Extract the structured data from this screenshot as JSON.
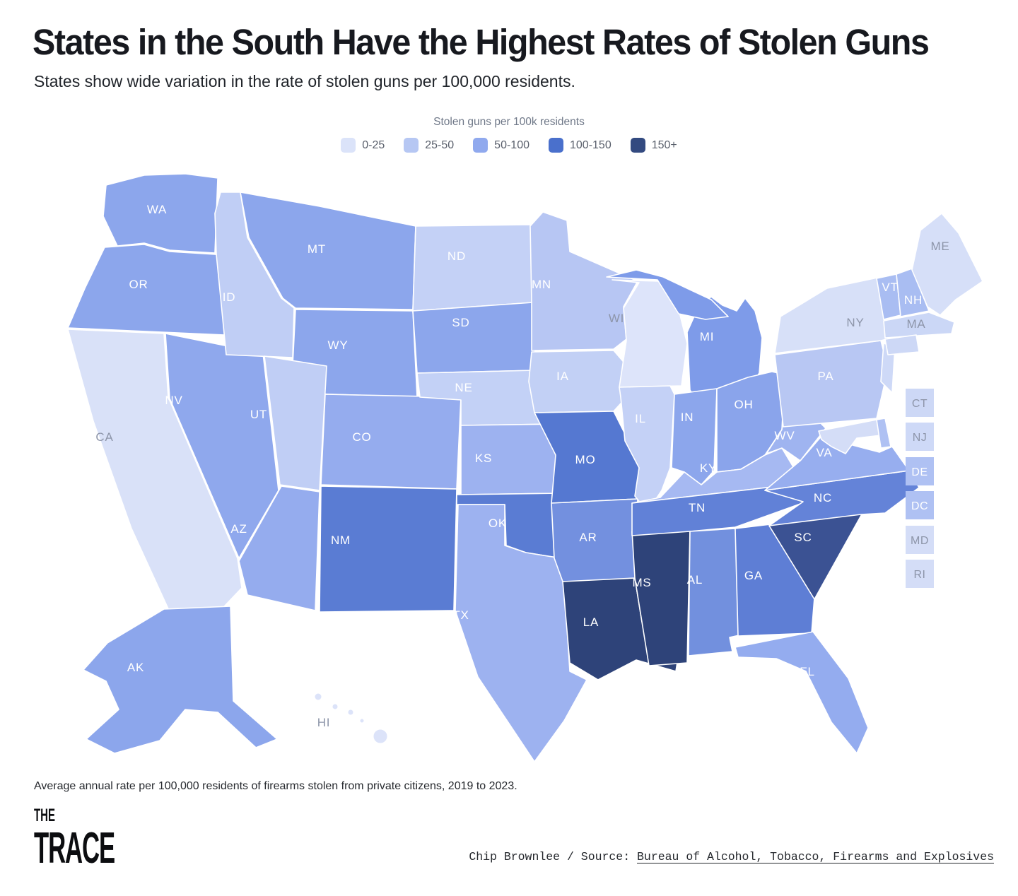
{
  "header": {
    "title": "States in the South Have the Highest Rates of Stolen Guns",
    "subtitle": "States show wide variation in the rate of stolen guns per 100,000 residents."
  },
  "legend": {
    "title": "Stolen guns per 100k residents",
    "items": [
      {
        "label": "0-25",
        "color": "#dbe3f9"
      },
      {
        "label": "25-50",
        "color": "#b6c7f3"
      },
      {
        "label": "50-100",
        "color": "#90a9ee"
      },
      {
        "label": "100-150",
        "color": "#4a70cc"
      },
      {
        "label": "150+",
        "color": "#334a80"
      }
    ]
  },
  "chart_data": {
    "type": "choropleth_map",
    "title": "Stolen guns per 100k residents",
    "geography": "United States, by state (Albers-style layout with AK and HI insets)",
    "metric": "Average annual rate of firearms stolen from private citizens per 100,000 residents, 2019 to 2023",
    "source": "Bureau of Alcohol, Tobacco, Firearms and Explosives",
    "bins": [
      "0-25",
      "25-50",
      "50-100",
      "100-150",
      "150+"
    ],
    "bin_colors": [
      "#dbe3f9",
      "#b6c7f3",
      "#90a9ee",
      "#4a70cc",
      "#334a80"
    ],
    "legend_position": "top-center",
    "boxed_small_states": [
      "CT",
      "NJ",
      "DE",
      "DC",
      "MD",
      "RI"
    ],
    "states": [
      {
        "abbr": "WA",
        "bin": "50-100",
        "fill": "#8ca6ec",
        "label_color": "#ffffff"
      },
      {
        "abbr": "OR",
        "bin": "50-100",
        "fill": "#8ca6ec",
        "label_color": "#ffffff"
      },
      {
        "abbr": "CA",
        "bin": "0-25",
        "fill": "#d9e1f8",
        "label_color": "#8d95a9"
      },
      {
        "abbr": "NV",
        "bin": "50-100",
        "fill": "#8fa8ed",
        "label_color": "#ffffff"
      },
      {
        "abbr": "ID",
        "bin": "25-50",
        "fill": "#c0cef5",
        "label_color": "#ffffff"
      },
      {
        "abbr": "MT",
        "bin": "50-100",
        "fill": "#8ca6ec",
        "label_color": "#ffffff"
      },
      {
        "abbr": "WY",
        "bin": "50-100",
        "fill": "#8ca6ec",
        "label_color": "#ffffff"
      },
      {
        "abbr": "UT",
        "bin": "25-50",
        "fill": "#c0cef5",
        "label_color": "#ffffff"
      },
      {
        "abbr": "CO",
        "bin": "50-100",
        "fill": "#95acee",
        "label_color": "#ffffff"
      },
      {
        "abbr": "AZ",
        "bin": "50-100",
        "fill": "#95acee",
        "label_color": "#ffffff"
      },
      {
        "abbr": "NM",
        "bin": "100-150",
        "fill": "#5a7cd3",
        "label_color": "#ffffff"
      },
      {
        "abbr": "ND",
        "bin": "25-50",
        "fill": "#c4d1f6",
        "label_color": "#ffffff"
      },
      {
        "abbr": "SD",
        "bin": "50-100",
        "fill": "#8ca6ec",
        "label_color": "#ffffff"
      },
      {
        "abbr": "NE",
        "bin": "25-50",
        "fill": "#c3d1f6",
        "label_color": "#ffffff"
      },
      {
        "abbr": "KS",
        "bin": "50-100",
        "fill": "#9db2f0",
        "label_color": "#ffffff"
      },
      {
        "abbr": "OK",
        "bin": "100-150",
        "fill": "#5a7cd3",
        "label_color": "#ffffff"
      },
      {
        "abbr": "TX",
        "bin": "50-100",
        "fill": "#9db2f0",
        "label_color": "#ffffff"
      },
      {
        "abbr": "MN",
        "bin": "25-50",
        "fill": "#b7c6f3",
        "label_color": "#ffffff"
      },
      {
        "abbr": "IA",
        "bin": "25-50",
        "fill": "#c2d0f5",
        "label_color": "#ffffff"
      },
      {
        "abbr": "MO",
        "bin": "100-150",
        "fill": "#5578d1",
        "label_color": "#ffffff"
      },
      {
        "abbr": "AR",
        "bin": "100-150",
        "fill": "#7390df",
        "label_color": "#ffffff"
      },
      {
        "abbr": "LA",
        "bin": "150+",
        "fill": "#2e4379",
        "label_color": "#ffffff"
      },
      {
        "abbr": "WI",
        "bin": "0-25",
        "fill": "#dde4fa",
        "label_color": "#8d95a9"
      },
      {
        "abbr": "IL",
        "bin": "25-50",
        "fill": "#c4d1f6",
        "label_color": "#ffffff"
      },
      {
        "abbr": "MS",
        "bin": "150+",
        "fill": "#2e4379",
        "label_color": "#ffffff"
      },
      {
        "abbr": "MI",
        "bin": "50-100",
        "fill": "#7e9be9",
        "label_color": "#ffffff"
      },
      {
        "abbr": "IN",
        "bin": "50-100",
        "fill": "#8ca6ec",
        "label_color": "#ffffff"
      },
      {
        "abbr": "OH",
        "bin": "50-100",
        "fill": "#8aa4eb",
        "label_color": "#ffffff"
      },
      {
        "abbr": "KY",
        "bin": "50-100",
        "fill": "#a6b9f2",
        "label_color": "#ffffff"
      },
      {
        "abbr": "TN",
        "bin": "100-150",
        "fill": "#6181d7",
        "label_color": "#ffffff"
      },
      {
        "abbr": "AL",
        "bin": "100-150",
        "fill": "#7290de",
        "label_color": "#ffffff"
      },
      {
        "abbr": "GA",
        "bin": "100-150",
        "fill": "#5e7ed5",
        "label_color": "#ffffff"
      },
      {
        "abbr": "FL",
        "bin": "50-100",
        "fill": "#94acef",
        "label_color": "#ffffff"
      },
      {
        "abbr": "SC",
        "bin": "150+",
        "fill": "#3b5293",
        "label_color": "#ffffff"
      },
      {
        "abbr": "NC",
        "bin": "100-150",
        "fill": "#6483d8",
        "label_color": "#ffffff"
      },
      {
        "abbr": "VA",
        "bin": "50-100",
        "fill": "#97aeef",
        "label_color": "#ffffff"
      },
      {
        "abbr": "WV",
        "bin": "50-100",
        "fill": "#9fb4f0",
        "label_color": "#ffffff"
      },
      {
        "abbr": "PA",
        "bin": "25-50",
        "fill": "#b8c7f3",
        "label_color": "#ffffff"
      },
      {
        "abbr": "NY",
        "bin": "0-25",
        "fill": "#d7e0f8",
        "label_color": "#8d95a9"
      },
      {
        "abbr": "VT",
        "bin": "50-100",
        "fill": "#a9bdf2",
        "label_color": "#ffffff"
      },
      {
        "abbr": "NH",
        "bin": "50-100",
        "fill": "#a9bdf2",
        "label_color": "#ffffff"
      },
      {
        "abbr": "ME",
        "bin": "0-25",
        "fill": "#d6dff8",
        "label_color": "#8d95a9"
      },
      {
        "abbr": "MA",
        "bin": "0-25",
        "fill": "#cbd7f6",
        "label_color": "#8d95a9"
      },
      {
        "abbr": "CT",
        "bin": "0-25",
        "fill": "#cdd8f6",
        "label_color": "#8d95a9"
      },
      {
        "abbr": "NJ",
        "bin": "0-25",
        "fill": "#ced9f7",
        "label_color": "#8d95a9"
      },
      {
        "abbr": "DE",
        "bin": "25-50",
        "fill": "#afc1f3",
        "label_color": "#ffffff"
      },
      {
        "abbr": "DC",
        "bin": "25-50",
        "fill": "#afc1f3",
        "label_color": "#ffffff"
      },
      {
        "abbr": "MD",
        "bin": "0-25",
        "fill": "#d4ddf7",
        "label_color": "#8d95a9"
      },
      {
        "abbr": "RI",
        "bin": "0-25",
        "fill": "#d4ddf7",
        "label_color": "#8d95a9"
      },
      {
        "abbr": "AK",
        "bin": "50-100",
        "fill": "#8ca6ec",
        "label_color": "#ffffff"
      },
      {
        "abbr": "HI",
        "bin": "0-25",
        "fill": "#dce3f9",
        "label_color": "#8d95a9"
      }
    ]
  },
  "footer": {
    "note": "Average annual rate per 100,000 residents of firearms stolen from private citizens, 2019 to 2023.",
    "credit_author": "Chip Brownlee",
    "credit_separator": " / ",
    "credit_source_label": "Source: ",
    "credit_source_link": "Bureau of Alcohol, Tobacco, Firearms and Explosives",
    "logo_line1": "THE",
    "logo_line2": "TRACE"
  }
}
